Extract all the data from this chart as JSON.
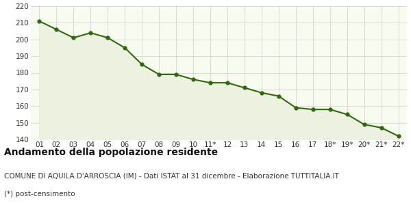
{
  "x_labels": [
    "01",
    "02",
    "03",
    "04",
    "05",
    "06",
    "07",
    "08",
    "09",
    "10",
    "11*",
    "12",
    "13",
    "14",
    "15",
    "16",
    "17",
    "18*",
    "19*",
    "20*",
    "21*",
    "22*"
  ],
  "y_values": [
    211,
    206,
    201,
    204,
    201,
    195,
    185,
    179,
    179,
    176,
    174,
    174,
    171,
    168,
    166,
    159,
    158,
    158,
    155,
    149,
    147,
    142
  ],
  "line_color": "#2d6a0a",
  "fill_color": "#edf2e0",
  "marker": "o",
  "marker_size": 3.5,
  "line_width": 1.5,
  "ylim": [
    140,
    220
  ],
  "yticks": [
    140,
    150,
    160,
    170,
    180,
    190,
    200,
    210,
    220
  ],
  "grid_color": "#cccccc",
  "bg_color": "#ffffff",
  "plot_bg_color": "#f8fbf0",
  "title": "Andamento della popolazione residente",
  "subtitle": "COMUNE DI AQUILA D'ARROSCIA (IM) - Dati ISTAT al 31 dicembre - Elaborazione TUTTITALIA.IT",
  "footnote": "(*) post-censimento",
  "title_fontsize": 10,
  "subtitle_fontsize": 7.5,
  "footnote_fontsize": 7.5,
  "tick_fontsize": 7.5
}
